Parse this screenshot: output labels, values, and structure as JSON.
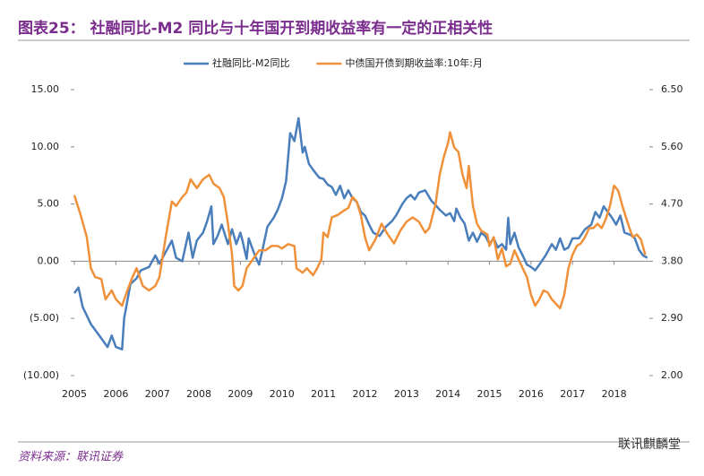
{
  "chart_data": {
    "type": "line",
    "title": "图表25： 社融同比-M2 同比与十年国开到期收益率有一定的正相关性",
    "source": "资料来源：联讯证券",
    "watermark": "联讯麒麟堂",
    "xlim": [
      2005,
      2018.85
    ],
    "xticks": [
      2005,
      2006,
      2007,
      2008,
      2009,
      2010,
      2011,
      2012,
      2013,
      2014,
      2015,
      2016,
      2017,
      2018
    ],
    "ylim": [
      -10,
      15
    ],
    "yticks": [
      {
        "value": -10,
        "label": "(10.00)"
      },
      {
        "value": -5,
        "label": "(5.00)"
      },
      {
        "value": 0,
        "label": "0.00"
      },
      {
        "value": 5,
        "label": "5.00"
      },
      {
        "value": 10,
        "label": "10.00"
      },
      {
        "value": 15,
        "label": "15.00"
      }
    ],
    "negative_tick_color": "#c00000",
    "y2lim": [
      2.0,
      6.5
    ],
    "y2ticks": [
      {
        "value": 2.0,
        "label": "2.00"
      },
      {
        "value": 2.9,
        "label": "2.90"
      },
      {
        "value": 3.8,
        "label": "3.80"
      },
      {
        "value": 4.7,
        "label": "4.70"
      },
      {
        "value": 5.6,
        "label": "5.60"
      },
      {
        "value": 6.5,
        "label": "6.50"
      }
    ],
    "legend": "top",
    "series": [
      {
        "name": "社融同比-M2同比",
        "color": "#4a7ebb",
        "x": [
          2005.0,
          2005.1,
          2005.2,
          2005.4,
          2005.6,
          2005.8,
          2005.9,
          2006.0,
          2006.15,
          2006.2,
          2006.35,
          2006.5,
          2006.6,
          2006.8,
          2006.95,
          2007.05,
          2007.2,
          2007.35,
          2007.45,
          2007.6,
          2007.75,
          2007.85,
          2007.95,
          2008.1,
          2008.2,
          2008.3,
          2008.35,
          2008.45,
          2008.55,
          2008.7,
          2008.8,
          2008.9,
          2009.0,
          2009.05,
          2009.15,
          2009.2,
          2009.35,
          2009.45,
          2009.55,
          2009.65,
          2009.8,
          2009.9,
          2010.0,
          2010.1,
          2010.2,
          2010.3,
          2010.4,
          2010.5,
          2010.55,
          2010.65,
          2010.75,
          2010.9,
          2011.0,
          2011.1,
          2011.2,
          2011.3,
          2011.4,
          2011.5,
          2011.6,
          2011.7,
          2011.8,
          2011.9,
          2012.0,
          2012.1,
          2012.2,
          2012.35,
          2012.5,
          2012.65,
          2012.75,
          2012.9,
          2013.0,
          2013.1,
          2013.2,
          2013.3,
          2013.45,
          2013.6,
          2013.7,
          2013.8,
          2013.95,
          2014.05,
          2014.15,
          2014.2,
          2014.3,
          2014.4,
          2014.5,
          2014.6,
          2014.7,
          2014.8,
          2014.9,
          2015.0,
          2015.1,
          2015.2,
          2015.3,
          2015.4,
          2015.45,
          2015.5,
          2015.6,
          2015.7,
          2015.8,
          2015.9,
          2016.0,
          2016.1,
          2016.2,
          2016.35,
          2016.5,
          2016.6,
          2016.7,
          2016.8,
          2016.9,
          2017.0,
          2017.15,
          2017.3,
          2017.45,
          2017.55,
          2017.65,
          2017.75,
          2017.85,
          2017.95,
          2018.05,
          2018.15,
          2018.25,
          2018.4,
          2018.5,
          2018.6,
          2018.7,
          2018.8
        ],
        "values": [
          -2.8,
          -2.3,
          -4,
          -5.5,
          -6.5,
          -7.5,
          -6.5,
          -7.5,
          -7.7,
          -5,
          -2,
          -1.5,
          -0.8,
          -0.5,
          0.5,
          -0.2,
          0.8,
          1.8,
          0.3,
          0,
          2.5,
          0.3,
          1.8,
          2.5,
          3.5,
          4.8,
          1.5,
          2.2,
          3.2,
          1.5,
          2.8,
          1.5,
          2.5,
          1.8,
          0.2,
          2,
          0.5,
          -0.3,
          1.3,
          3,
          3.8,
          4.5,
          5.5,
          7,
          11.2,
          10.5,
          12.5,
          9.5,
          10,
          8.5,
          8,
          7.3,
          7.2,
          6.7,
          6.5,
          5.8,
          6.6,
          5.5,
          6.2,
          5.5,
          5.2,
          4.3,
          4,
          3.2,
          2.5,
          2.2,
          3,
          3.5,
          4,
          5,
          5.5,
          5.8,
          5.4,
          6,
          6.2,
          5.3,
          4.9,
          4.5,
          4,
          4.2,
          3.5,
          4.6,
          3.8,
          3.3,
          1.8,
          2.5,
          1.7,
          2.5,
          2.2,
          1.5,
          2,
          1.2,
          1.5,
          1,
          3.8,
          1.5,
          2.5,
          1.2,
          0.5,
          -0.3,
          -0.5,
          -0.8,
          -0.3,
          0.5,
          1.5,
          1,
          2,
          1,
          1.2,
          2,
          2,
          2.8,
          3.2,
          4.3,
          3.8,
          4.8,
          4.3,
          3.8,
          3.2,
          4,
          2.5,
          2.3,
          2,
          1,
          0.5,
          0.3
        ]
      },
      {
        "name": "中债国开债到期收益率:10年:月",
        "color": "#f0913a",
        "axis": "y2",
        "x": [
          2005.0,
          2005.15,
          2005.3,
          2005.4,
          2005.5,
          2005.65,
          2005.75,
          2005.9,
          2006.0,
          2006.15,
          2006.25,
          2006.4,
          2006.5,
          2006.65,
          2006.8,
          2006.95,
          2007.05,
          2007.2,
          2007.35,
          2007.45,
          2007.6,
          2007.7,
          2007.8,
          2007.95,
          2008.1,
          2008.25,
          2008.35,
          2008.5,
          2008.6,
          2008.7,
          2008.8,
          2008.85,
          2008.95,
          2009.05,
          2009.15,
          2009.3,
          2009.45,
          2009.6,
          2009.75,
          2009.9,
          2010.0,
          2010.15,
          2010.3,
          2010.35,
          2010.5,
          2010.6,
          2010.75,
          2010.85,
          2010.95,
          2011.0,
          2011.1,
          2011.2,
          2011.35,
          2011.5,
          2011.6,
          2011.7,
          2011.8,
          2011.9,
          2012.0,
          2012.1,
          2012.25,
          2012.4,
          2012.55,
          2012.7,
          2012.85,
          2013.0,
          2013.15,
          2013.3,
          2013.45,
          2013.55,
          2013.7,
          2013.8,
          2013.9,
          2014.0,
          2014.05,
          2014.15,
          2014.25,
          2014.35,
          2014.45,
          2014.5,
          2014.6,
          2014.7,
          2014.8,
          2014.95,
          2015.0,
          2015.1,
          2015.2,
          2015.3,
          2015.4,
          2015.5,
          2015.6,
          2015.7,
          2015.8,
          2015.9,
          2016.0,
          2016.1,
          2016.2,
          2016.3,
          2016.4,
          2016.5,
          2016.6,
          2016.7,
          2016.8,
          2016.9,
          2017.0,
          2017.1,
          2017.2,
          2017.3,
          2017.4,
          2017.5,
          2017.6,
          2017.7,
          2017.8,
          2017.9,
          2018.0,
          2018.1,
          2018.2,
          2018.35,
          2018.45,
          2018.55,
          2018.65,
          2018.75
        ],
        "values": [
          4.84,
          4.53,
          4.18,
          3.69,
          3.55,
          3.52,
          3.2,
          3.34,
          3.2,
          3.1,
          3.29,
          3.55,
          3.69,
          3.41,
          3.34,
          3.41,
          3.55,
          4.18,
          4.74,
          4.67,
          4.81,
          4.88,
          5.09,
          4.95,
          5.09,
          5.16,
          5.02,
          4.95,
          4.81,
          4.39,
          3.9,
          3.41,
          3.34,
          3.41,
          3.69,
          3.83,
          3.97,
          3.97,
          4.04,
          4.04,
          4.0,
          4.07,
          4.04,
          3.69,
          3.62,
          3.69,
          3.58,
          3.69,
          3.83,
          4.25,
          4.18,
          4.49,
          4.53,
          4.6,
          4.64,
          4.81,
          4.74,
          4.53,
          4.18,
          3.97,
          4.14,
          4.39,
          4.22,
          4.08,
          4.28,
          4.42,
          4.49,
          4.42,
          4.25,
          4.32,
          4.7,
          5.16,
          5.44,
          5.66,
          5.83,
          5.59,
          5.52,
          5.16,
          4.95,
          5.3,
          4.67,
          4.39,
          4.28,
          4.22,
          4.04,
          4.18,
          3.83,
          4.0,
          3.72,
          3.76,
          3.97,
          3.83,
          3.69,
          3.55,
          3.27,
          3.1,
          3.2,
          3.34,
          3.31,
          3.2,
          3.13,
          3.06,
          3.27,
          3.69,
          3.9,
          4.04,
          4.08,
          4.18,
          4.32,
          4.32,
          4.39,
          4.32,
          4.46,
          4.67,
          4.99,
          4.91,
          4.67,
          4.36,
          4.18,
          4.22,
          4.14,
          3.9
        ]
      }
    ]
  }
}
